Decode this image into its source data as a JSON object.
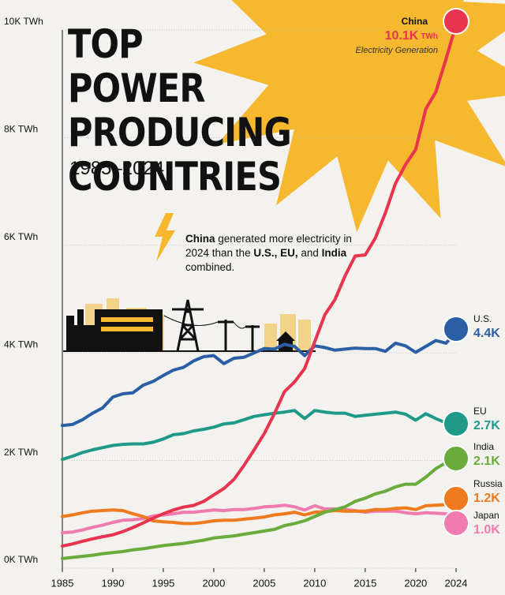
{
  "chart_data": {
    "type": "line",
    "title": "TOP POWER PRODUCING COUNTRIES",
    "subtitle": "1985–2024",
    "annotation": [
      {
        "text": "China",
        "bold": true
      },
      {
        "text": " generated more electricity in 2024 than the ",
        "bold": false
      },
      {
        "text": "U.S., EU,",
        "bold": true
      },
      {
        "text": " and ",
        "bold": false
      },
      {
        "text": "India",
        "bold": true
      },
      {
        "text": " combined.",
        "bold": false
      }
    ],
    "x": [
      1985,
      1986,
      1987,
      1988,
      1989,
      1990,
      1991,
      1992,
      1993,
      1994,
      1995,
      1996,
      1997,
      1998,
      1999,
      2000,
      2001,
      2002,
      2003,
      2004,
      2005,
      2006,
      2007,
      2008,
      2009,
      2010,
      2011,
      2012,
      2013,
      2014,
      2015,
      2016,
      2017,
      2018,
      2019,
      2020,
      2021,
      2022,
      2023,
      2024
    ],
    "xlim": [
      1985,
      2024
    ],
    "xticks": [
      1985,
      1990,
      1995,
      2000,
      2005,
      2010,
      2015,
      2020,
      2024
    ],
    "ylim": [
      0,
      10000
    ],
    "yticks": [
      {
        "value": 0,
        "label": "0K TWh"
      },
      {
        "value": 2000,
        "label": "2K TWh"
      },
      {
        "value": 4000,
        "label": "4K TWh"
      },
      {
        "value": 6000,
        "label": "6K TWh"
      },
      {
        "value": 8000,
        "label": "8K TWh"
      },
      {
        "value": 10000,
        "label": "10K TWh"
      }
    ],
    "grid": true,
    "series": [
      {
        "name": "China",
        "color": "#e8344e",
        "end_label": "10.1K",
        "unit": "TWh",
        "note": "Electricity Generation",
        "values": [
          410,
          450,
          500,
          545,
          585,
          620,
          680,
          755,
          840,
          930,
          1010,
          1080,
          1135,
          1165,
          1240,
          1360,
          1480,
          1650,
          1910,
          2200,
          2500,
          2870,
          3280,
          3460,
          3710,
          4210,
          4710,
          4990,
          5430,
          5800,
          5820,
          6130,
          6600,
          7150,
          7500,
          7780,
          8530,
          8850,
          9460,
          10100
        ]
      },
      {
        "name": "U.S.",
        "color": "#2a5fa5",
        "end_label": "4.4K",
        "values": [
          2650,
          2670,
          2760,
          2880,
          2980,
          3180,
          3240,
          3260,
          3400,
          3470,
          3580,
          3680,
          3730,
          3850,
          3930,
          3950,
          3800,
          3900,
          3920,
          4000,
          4080,
          4070,
          4160,
          4120,
          3950,
          4130,
          4100,
          4050,
          4070,
          4090,
          4080,
          4080,
          4030,
          4180,
          4130,
          4010,
          4120,
          4230,
          4180,
          4380
        ]
      },
      {
        "name": "EU",
        "color": "#1f9a8a",
        "end_label": "2.7K",
        "values": [
          2020,
          2080,
          2150,
          2200,
          2240,
          2280,
          2300,
          2310,
          2310,
          2340,
          2400,
          2480,
          2500,
          2550,
          2580,
          2620,
          2680,
          2700,
          2760,
          2820,
          2850,
          2880,
          2900,
          2930,
          2780,
          2930,
          2900,
          2880,
          2880,
          2820,
          2840,
          2860,
          2880,
          2900,
          2860,
          2750,
          2870,
          2780,
          2700,
          2700
        ]
      },
      {
        "name": "India",
        "color": "#6aab3c",
        "end_label": "2.1K",
        "values": [
          180,
          200,
          220,
          240,
          270,
          290,
          310,
          340,
          360,
          390,
          420,
          440,
          460,
          490,
          520,
          560,
          580,
          600,
          630,
          660,
          690,
          720,
          790,
          830,
          880,
          960,
          1040,
          1090,
          1140,
          1240,
          1300,
          1380,
          1430,
          1510,
          1560,
          1560,
          1690,
          1850,
          1960,
          2100
        ]
      },
      {
        "name": "Russia",
        "color": "#f07a1e",
        "end_label": "1.2K",
        "values": [
          960,
          990,
          1030,
          1060,
          1070,
          1080,
          1070,
          1010,
          960,
          880,
          860,
          850,
          830,
          830,
          850,
          880,
          890,
          890,
          910,
          930,
          950,
          990,
          1010,
          1040,
          990,
          1040,
          1050,
          1070,
          1060,
          1060,
          1060,
          1090,
          1090,
          1110,
          1120,
          1090,
          1160,
          1170,
          1180,
          1180
        ]
      },
      {
        "name": "Japan",
        "color": "#f07bb0",
        "end_label": "1.0K",
        "values": [
          660,
          670,
          710,
          760,
          800,
          850,
          890,
          900,
          920,
          970,
          990,
          1010,
          1040,
          1040,
          1060,
          1080,
          1070,
          1090,
          1090,
          1110,
          1140,
          1150,
          1170,
          1140,
          1080,
          1160,
          1100,
          1100,
          1090,
          1070,
          1040,
          1060,
          1060,
          1060,
          1030,
          1010,
          1030,
          1020,
          1010,
          1000
        ]
      }
    ]
  }
}
